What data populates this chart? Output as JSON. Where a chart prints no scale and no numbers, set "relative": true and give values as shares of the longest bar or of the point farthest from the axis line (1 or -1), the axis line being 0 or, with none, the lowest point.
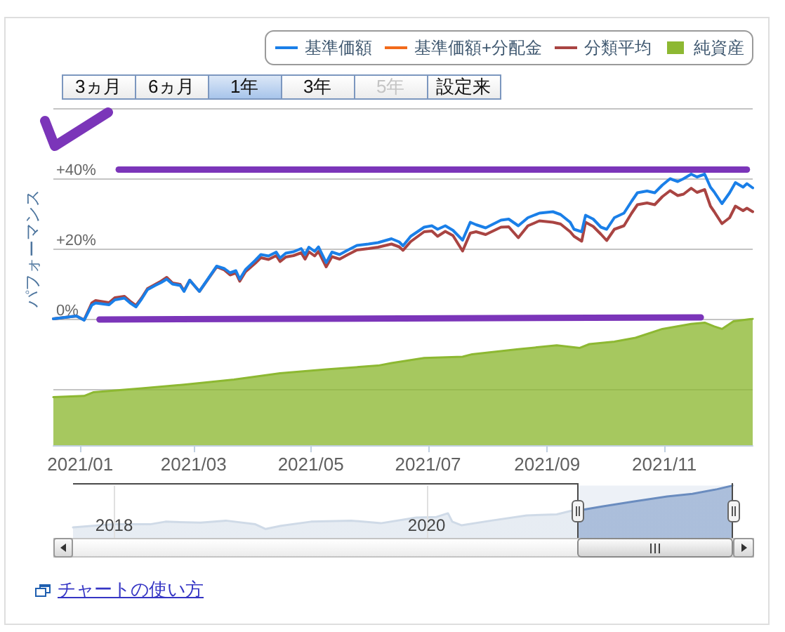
{
  "chart_data": [
    {
      "type": "line",
      "ylabel": "パフォーマンス",
      "annotations": [
        "3ヵ月",
        "6ヵ月",
        "1年",
        "3年",
        "5年",
        "設定来"
      ],
      "x": [
        "2020-12-18",
        "2020-12-27",
        "2020-12-30",
        "2021-01-03",
        "2021-01-07",
        "2021-01-09",
        "2021-01-16",
        "2021-01-19",
        "2021-01-24",
        "2021-01-27",
        "2021-01-30",
        "2021-02-02",
        "2021-02-05",
        "2021-02-09",
        "2021-02-12",
        "2021-02-15",
        "2021-02-18",
        "2021-02-22",
        "2021-02-24",
        "2021-02-27",
        "2021-03-01",
        "2021-03-04",
        "2021-03-08",
        "2021-03-13",
        "2021-03-17",
        "2021-03-20",
        "2021-03-23",
        "2021-03-25",
        "2021-03-28",
        "2021-04-02",
        "2021-04-05",
        "2021-04-09",
        "2021-04-13",
        "2021-04-15",
        "2021-04-18",
        "2021-04-22",
        "2021-04-26",
        "2021-04-28",
        "2021-04-30",
        "2021-05-03",
        "2021-05-05",
        "2021-05-09",
        "2021-05-12",
        "2021-05-16",
        "2021-05-20",
        "2021-05-25",
        "2021-05-31",
        "2021-06-05",
        "2021-06-12",
        "2021-06-16",
        "2021-06-18",
        "2021-06-22",
        "2021-06-29",
        "2021-07-03",
        "2021-07-06",
        "2021-07-10",
        "2021-07-14",
        "2021-07-19",
        "2021-07-23",
        "2021-07-26",
        "2021-07-31",
        "2021-08-08",
        "2021-08-12",
        "2021-08-17",
        "2021-08-22",
        "2021-08-28",
        "2021-09-04",
        "2021-09-08",
        "2021-09-13",
        "2021-09-15",
        "2021-09-19",
        "2021-09-21",
        "2021-09-25",
        "2021-09-29",
        "2021-10-02",
        "2021-10-06",
        "2021-10-11",
        "2021-10-15",
        "2021-10-18",
        "2021-10-23",
        "2021-10-27",
        "2021-10-31",
        "2021-11-04",
        "2021-11-08",
        "2021-11-11",
        "2021-11-15",
        "2021-11-18",
        "2021-11-22",
        "2021-11-25",
        "2021-11-27",
        "2021-12-01",
        "2021-12-05",
        "2021-12-08",
        "2021-12-12",
        "2021-12-14",
        "2021-12-17"
      ],
      "series": [
        {
          "name": "基準価額",
          "color": "#1a7fe8",
          "values": [
            0,
            0.6,
            0.8,
            -0.4,
            3.9,
            4.5,
            4.0,
            5.4,
            5.9,
            4.5,
            3.4,
            5.7,
            8.3,
            9.5,
            10.3,
            11.3,
            9.9,
            9.5,
            7.8,
            11.0,
            9.7,
            7.8,
            11.0,
            15.0,
            14.3,
            13.1,
            13.7,
            11.3,
            14.0,
            16.6,
            18.3,
            17.9,
            19.0,
            17.3,
            18.7,
            19.1,
            20.0,
            18.3,
            20.4,
            19.2,
            20.5,
            16.0,
            19.0,
            18.3,
            19.5,
            20.9,
            21.3,
            21.7,
            22.8,
            21.9,
            20.8,
            23.5,
            26.1,
            26.5,
            25.5,
            26.5,
            25.2,
            22.4,
            27.5,
            26.8,
            25.9,
            28.1,
            28.4,
            26.5,
            28.8,
            30.1,
            30.5,
            29.7,
            27.5,
            25.5,
            24.8,
            29.5,
            28.4,
            26.1,
            25.5,
            28.8,
            30.1,
            33.5,
            35.9,
            36.4,
            35.9,
            38.1,
            39.9,
            39.1,
            39.9,
            41.2,
            40.4,
            41.2,
            37.5,
            36.1,
            32.8,
            35.9,
            38.8,
            37.5,
            38.5,
            37.3
          ]
        },
        {
          "name": "基準価額+分配金",
          "color": "#f26a1b",
          "values": [
            null,
            null,
            null,
            null,
            null,
            null,
            null,
            null,
            null,
            null,
            null,
            null,
            null,
            null,
            null,
            null,
            null,
            null,
            null,
            null,
            null,
            null,
            null,
            null,
            null,
            null,
            null,
            null,
            null,
            null,
            null,
            null,
            null,
            null,
            null,
            null,
            null,
            null,
            null,
            null,
            null,
            null,
            null,
            null,
            null,
            null,
            null,
            null,
            null,
            null,
            null,
            null,
            null,
            null,
            null,
            null,
            null,
            null,
            null,
            null,
            null,
            null,
            null,
            null,
            null,
            null,
            null,
            null,
            null,
            null,
            null,
            null,
            null,
            null,
            null,
            null,
            null,
            null,
            null,
            null,
            null,
            null,
            null,
            null,
            null,
            null,
            null,
            null,
            null,
            null,
            null,
            null,
            null,
            null,
            null,
            null
          ]
        },
        {
          "name": "分類平均",
          "color": "#a94442",
          "values": [
            0,
            0.6,
            0.8,
            -0.3,
            4.5,
            5.2,
            4.6,
            6.0,
            6.4,
            5.0,
            3.8,
            6.0,
            8.6,
            9.8,
            10.7,
            11.8,
            10.2,
            9.8,
            8.0,
            11.0,
            9.7,
            7.8,
            10.9,
            14.8,
            13.9,
            12.5,
            13.1,
            10.7,
            13.4,
            15.8,
            17.4,
            16.9,
            18.0,
            16.3,
            17.6,
            18.0,
            18.8,
            17.0,
            19.1,
            17.9,
            19.2,
            14.8,
            17.7,
            17.0,
            18.2,
            19.6,
            20.0,
            20.4,
            21.3,
            20.5,
            19.5,
            22.0,
            24.8,
            25.0,
            23.5,
            24.9,
            23.7,
            19.3,
            24.4,
            24.8,
            24.0,
            26.1,
            26.2,
            23.1,
            26.5,
            27.9,
            27.5,
            27.0,
            24.8,
            23.5,
            22.1,
            27.5,
            26.3,
            24.1,
            22.3,
            25.5,
            26.5,
            30.1,
            32.5,
            33.0,
            32.5,
            34.8,
            36.5,
            35.1,
            35.5,
            37.2,
            36.0,
            36.8,
            32.1,
            30.5,
            27.1,
            28.8,
            32.1,
            30.8,
            31.5,
            30.5
          ]
        },
        {
          "color": "#7b35b9",
          "x": [
            "2021-01-21",
            "2021-12-14"
          ],
          "values": [
            42.5,
            42.5
          ]
        },
        {
          "color": "#7b35b9",
          "x": [
            "2021-01-11",
            "2021-11-20"
          ],
          "values": [
            -0.2,
            0.4
          ]
        }
      ],
      "xlim": [
        "2020-12-18",
        "2021-12-17"
      ],
      "ylim": [
        -20,
        60
      ],
      "yticks": [
        {
          "value": -20,
          "label": null
        },
        {
          "value": 0,
          "label": "0%"
        },
        {
          "value": 20,
          "label": "+20%"
        },
        {
          "value": 40,
          "label": "+40%"
        },
        {
          "value": 60,
          "label": null
        }
      ],
      "tick_labels": "y",
      "grid": "y",
      "legend": "top right",
      "marker": "none"
    },
    {
      "type": "area",
      "x": [
        "2020-12-18",
        "2021-01-03",
        "2021-01-08",
        "2021-02-02",
        "2021-02-25",
        "2021-03-22",
        "2021-04-15",
        "2021-05-09",
        "2021-06-05",
        "2021-06-12",
        "2021-06-29",
        "2021-07-19",
        "2021-07-24",
        "2021-08-17",
        "2021-09-06",
        "2021-09-18",
        "2021-09-23",
        "2021-10-06",
        "2021-10-17",
        "2021-10-31",
        "2021-11-15",
        "2021-11-22",
        "2021-11-27",
        "2021-12-01",
        "2021-12-07",
        "2021-12-17"
      ],
      "series": [
        {
          "name": "純資産",
          "color": "#8db832",
          "values": [
            0.38,
            0.39,
            0.42,
            0.45,
            0.48,
            0.52,
            0.57,
            0.6,
            0.63,
            0.65,
            0.69,
            0.7,
            0.72,
            0.76,
            0.79,
            0.77,
            0.8,
            0.82,
            0.85,
            0.92,
            0.96,
            0.97,
            0.94,
            0.92,
            0.98,
            1
          ]
        }
      ],
      "relative": true,
      "xlim": [
        "2020-12-18",
        "2021-12-17"
      ],
      "xticks": [
        {
          "value": "2021-01",
          "label": "2021/01"
        },
        {
          "value": "2021-03",
          "label": "2021/03"
        },
        {
          "value": "2021-05",
          "label": "2021/05"
        },
        {
          "value": "2021-07",
          "label": "2021/07"
        },
        {
          "value": "2021-09",
          "label": "2021/09"
        },
        {
          "value": "2021-11",
          "label": "2021/11"
        }
      ],
      "legend": "top right"
    },
    {
      "type": "area",
      "x": [
        "2017-09-27",
        "2017-12-30",
        "2018-03-26",
        "2018-05-01",
        "2018-07-22",
        "2018-09-19",
        "2018-11-27",
        "2018-12-21",
        "2019-01-26",
        "2019-04-06",
        "2019-07-09",
        "2019-09-16",
        "2019-12-08",
        "2020-01-24",
        "2020-02-20",
        "2020-03-01",
        "2020-03-23",
        "2020-05-31",
        "2020-08-22",
        "2020-10-31",
        "2020-12-05",
        "2020-12-18",
        "2021-02-14",
        "2021-04-25",
        "2021-07-16",
        "2021-09-13",
        "2021-11-10",
        "2021-12-17"
      ],
      "values": [
        0.2,
        0.26,
        0.26,
        0.31,
        0.29,
        0.33,
        0.26,
        0.17,
        0.23,
        0.31,
        0.33,
        0.28,
        0.39,
        0.4,
        0.47,
        0.31,
        0.24,
        0.33,
        0.43,
        0.45,
        0.52,
        0.52,
        0.6,
        0.69,
        0.79,
        0.84,
        0.93,
        1
      ],
      "color": "#cfdae7",
      "relative": true,
      "xlim": [
        "2017-09-27",
        "2021-12-17"
      ],
      "xticks": [
        {
          "value": "2018",
          "label": "2018"
        },
        {
          "value": "2020",
          "label": "2020"
        }
      ],
      "grid": "x",
      "bands": [
        {
          "axis": "x",
          "from": "2020-12-18",
          "to": "2021-12-17",
          "color": "#6a8cbf"
        }
      ],
      "annotations": [
        "チャートの使い方"
      ]
    }
  ]
}
